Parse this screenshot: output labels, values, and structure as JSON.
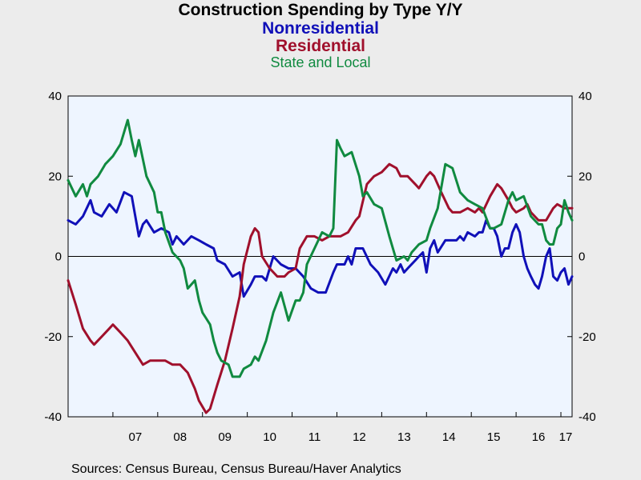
{
  "chart_data": {
    "type": "line",
    "title": "Construction Spending by Type Y/Y",
    "xlabel": "",
    "ylabel": "",
    "ylim": [
      -40,
      40
    ],
    "yticks": [
      -40,
      -20,
      0,
      20,
      40
    ],
    "xlim": [
      2006.0,
      2017.25
    ],
    "x_tick_labels": [
      "07",
      "08",
      "09",
      "10",
      "11",
      "12",
      "13",
      "14",
      "15",
      "16",
      "17"
    ],
    "grid": false,
    "legend": "top (title lines)",
    "series": [
      {
        "name": "Nonresidential",
        "color": "#1010b8",
        "points": [
          [
            2006.0,
            9
          ],
          [
            2006.17,
            8
          ],
          [
            2006.33,
            10
          ],
          [
            2006.5,
            14
          ],
          [
            2006.58,
            11
          ],
          [
            2006.75,
            10
          ],
          [
            2006.92,
            13
          ],
          [
            2007.08,
            11
          ],
          [
            2007.25,
            16
          ],
          [
            2007.42,
            15
          ],
          [
            2007.58,
            5
          ],
          [
            2007.67,
            8
          ],
          [
            2007.75,
            9
          ],
          [
            2007.92,
            6
          ],
          [
            2008.08,
            7
          ],
          [
            2008.25,
            6
          ],
          [
            2008.33,
            3
          ],
          [
            2008.42,
            5
          ],
          [
            2008.58,
            3
          ],
          [
            2008.75,
            5
          ],
          [
            2008.92,
            4
          ],
          [
            2009.08,
            3
          ],
          [
            2009.25,
            2
          ],
          [
            2009.33,
            -1
          ],
          [
            2009.5,
            -2
          ],
          [
            2009.67,
            -5
          ],
          [
            2009.83,
            -4
          ],
          [
            2009.92,
            -10
          ],
          [
            2010.08,
            -7
          ],
          [
            2010.17,
            -5
          ],
          [
            2010.33,
            -5
          ],
          [
            2010.42,
            -6
          ],
          [
            2010.58,
            0
          ],
          [
            2010.75,
            -2
          ],
          [
            2010.92,
            -3
          ],
          [
            2011.08,
            -3
          ],
          [
            2011.25,
            -5
          ],
          [
            2011.42,
            -8
          ],
          [
            2011.58,
            -9
          ],
          [
            2011.75,
            -9
          ],
          [
            2011.92,
            -4
          ],
          [
            2012.0,
            -2
          ],
          [
            2012.17,
            -2
          ],
          [
            2012.25,
            0
          ],
          [
            2012.33,
            -2
          ],
          [
            2012.42,
            2
          ],
          [
            2012.58,
            2
          ],
          [
            2012.75,
            -2
          ],
          [
            2012.92,
            -4
          ],
          [
            2013.08,
            -7
          ],
          [
            2013.25,
            -3
          ],
          [
            2013.33,
            -4
          ],
          [
            2013.42,
            -2
          ],
          [
            2013.5,
            -4
          ],
          [
            2013.58,
            -3
          ],
          [
            2013.75,
            -1
          ],
          [
            2013.83,
            0
          ],
          [
            2013.92,
            1
          ],
          [
            2014.0,
            -4
          ],
          [
            2014.08,
            2
          ],
          [
            2014.17,
            4
          ],
          [
            2014.25,
            1
          ],
          [
            2014.42,
            4
          ],
          [
            2014.5,
            4
          ],
          [
            2014.67,
            4
          ],
          [
            2014.75,
            5
          ],
          [
            2014.83,
            4
          ],
          [
            2014.92,
            6
          ],
          [
            2015.08,
            5
          ],
          [
            2015.17,
            6
          ],
          [
            2015.25,
            6
          ],
          [
            2015.33,
            9
          ],
          [
            2015.42,
            7
          ],
          [
            2015.5,
            7
          ],
          [
            2015.58,
            5
          ],
          [
            2015.67,
            0
          ],
          [
            2015.75,
            2
          ],
          [
            2015.83,
            2
          ],
          [
            2015.92,
            6
          ],
          [
            2016.0,
            8
          ],
          [
            2016.08,
            6
          ],
          [
            2016.17,
            0
          ],
          [
            2016.25,
            -3
          ],
          [
            2016.33,
            -5
          ],
          [
            2016.42,
            -7
          ],
          [
            2016.5,
            -8
          ],
          [
            2016.58,
            -5
          ],
          [
            2016.67,
            0
          ],
          [
            2016.75,
            2
          ],
          [
            2016.83,
            -5
          ],
          [
            2016.92,
            -6
          ],
          [
            2017.0,
            -4
          ],
          [
            2017.08,
            -3
          ],
          [
            2017.17,
            -7
          ],
          [
            2017.25,
            -5
          ]
        ]
      },
      {
        "name": "Residential",
        "color": "#a0102c",
        "points": [
          [
            2006.0,
            -6
          ],
          [
            2006.17,
            -12
          ],
          [
            2006.33,
            -18
          ],
          [
            2006.5,
            -21
          ],
          [
            2006.58,
            -22
          ],
          [
            2006.75,
            -20
          ],
          [
            2006.92,
            -18
          ],
          [
            2007.0,
            -17
          ],
          [
            2007.17,
            -19
          ],
          [
            2007.33,
            -21
          ],
          [
            2007.5,
            -24
          ],
          [
            2007.67,
            -27
          ],
          [
            2007.83,
            -26
          ],
          [
            2008.0,
            -26
          ],
          [
            2008.17,
            -26
          ],
          [
            2008.33,
            -27
          ],
          [
            2008.5,
            -27
          ],
          [
            2008.67,
            -29
          ],
          [
            2008.83,
            -33
          ],
          [
            2008.92,
            -36
          ],
          [
            2009.08,
            -39
          ],
          [
            2009.17,
            -38
          ],
          [
            2009.33,
            -32
          ],
          [
            2009.5,
            -26
          ],
          [
            2009.67,
            -18
          ],
          [
            2009.83,
            -10
          ],
          [
            2009.92,
            -2
          ],
          [
            2010.08,
            5
          ],
          [
            2010.17,
            7
          ],
          [
            2010.25,
            6
          ],
          [
            2010.33,
            0
          ],
          [
            2010.5,
            -3
          ],
          [
            2010.67,
            -5
          ],
          [
            2010.83,
            -5
          ],
          [
            2010.92,
            -4
          ],
          [
            2011.08,
            -3
          ],
          [
            2011.17,
            2
          ],
          [
            2011.33,
            5
          ],
          [
            2011.5,
            5
          ],
          [
            2011.67,
            4
          ],
          [
            2011.83,
            5
          ],
          [
            2011.92,
            5
          ],
          [
            2012.08,
            5
          ],
          [
            2012.25,
            6
          ],
          [
            2012.42,
            9
          ],
          [
            2012.5,
            10
          ],
          [
            2012.67,
            18
          ],
          [
            2012.83,
            20
          ],
          [
            2013.0,
            21
          ],
          [
            2013.17,
            23
          ],
          [
            2013.33,
            22
          ],
          [
            2013.42,
            20
          ],
          [
            2013.58,
            20
          ],
          [
            2013.75,
            18
          ],
          [
            2013.83,
            17
          ],
          [
            2014.0,
            20
          ],
          [
            2014.08,
            21
          ],
          [
            2014.17,
            20
          ],
          [
            2014.33,
            16
          ],
          [
            2014.5,
            12
          ],
          [
            2014.58,
            11
          ],
          [
            2014.75,
            11
          ],
          [
            2014.92,
            12
          ],
          [
            2015.08,
            11
          ],
          [
            2015.17,
            12
          ],
          [
            2015.25,
            11
          ],
          [
            2015.42,
            15
          ],
          [
            2015.58,
            18
          ],
          [
            2015.67,
            17
          ],
          [
            2015.83,
            14
          ],
          [
            2015.92,
            12
          ],
          [
            2016.0,
            11
          ],
          [
            2016.17,
            12
          ],
          [
            2016.25,
            13
          ],
          [
            2016.33,
            11
          ],
          [
            2016.5,
            9
          ],
          [
            2016.67,
            9
          ],
          [
            2016.83,
            12
          ],
          [
            2016.92,
            13
          ],
          [
            2017.08,
            12
          ],
          [
            2017.17,
            12
          ],
          [
            2017.25,
            12
          ]
        ]
      },
      {
        "name": "State and Local",
        "color": "#108a40",
        "points": [
          [
            2006.0,
            19
          ],
          [
            2006.17,
            15
          ],
          [
            2006.33,
            18
          ],
          [
            2006.42,
            15
          ],
          [
            2006.5,
            18
          ],
          [
            2006.67,
            20
          ],
          [
            2006.83,
            23
          ],
          [
            2007.0,
            25
          ],
          [
            2007.17,
            28
          ],
          [
            2007.33,
            34
          ],
          [
            2007.42,
            29
          ],
          [
            2007.5,
            25
          ],
          [
            2007.58,
            29
          ],
          [
            2007.75,
            20
          ],
          [
            2007.92,
            16
          ],
          [
            2008.0,
            11
          ],
          [
            2008.08,
            11
          ],
          [
            2008.17,
            6
          ],
          [
            2008.33,
            1
          ],
          [
            2008.5,
            -1
          ],
          [
            2008.58,
            -3
          ],
          [
            2008.67,
            -8
          ],
          [
            2008.83,
            -6
          ],
          [
            2008.92,
            -11
          ],
          [
            2009.0,
            -14
          ],
          [
            2009.17,
            -17
          ],
          [
            2009.25,
            -21
          ],
          [
            2009.33,
            -24
          ],
          [
            2009.42,
            -26
          ],
          [
            2009.58,
            -27
          ],
          [
            2009.67,
            -30
          ],
          [
            2009.83,
            -30
          ],
          [
            2009.92,
            -28
          ],
          [
            2010.08,
            -27
          ],
          [
            2010.17,
            -25
          ],
          [
            2010.25,
            -26
          ],
          [
            2010.42,
            -21
          ],
          [
            2010.58,
            -14
          ],
          [
            2010.75,
            -9
          ],
          [
            2010.92,
            -16
          ],
          [
            2011.08,
            -11
          ],
          [
            2011.17,
            -11
          ],
          [
            2011.25,
            -9
          ],
          [
            2011.33,
            -2
          ],
          [
            2011.5,
            2
          ],
          [
            2011.67,
            6
          ],
          [
            2011.83,
            5
          ],
          [
            2011.92,
            7
          ],
          [
            2012.0,
            29
          ],
          [
            2012.08,
            27
          ],
          [
            2012.17,
            25
          ],
          [
            2012.33,
            26
          ],
          [
            2012.5,
            20
          ],
          [
            2012.58,
            15
          ],
          [
            2012.67,
            16
          ],
          [
            2012.83,
            13
          ],
          [
            2013.0,
            12
          ],
          [
            2013.17,
            5
          ],
          [
            2013.33,
            -1
          ],
          [
            2013.5,
            0
          ],
          [
            2013.58,
            -1
          ],
          [
            2013.67,
            1
          ],
          [
            2013.83,
            3
          ],
          [
            2014.0,
            4
          ],
          [
            2014.08,
            7
          ],
          [
            2014.25,
            12
          ],
          [
            2014.42,
            23
          ],
          [
            2014.58,
            22
          ],
          [
            2014.75,
            16
          ],
          [
            2014.92,
            14
          ],
          [
            2015.08,
            13
          ],
          [
            2015.25,
            12
          ],
          [
            2015.42,
            7
          ],
          [
            2015.5,
            7
          ],
          [
            2015.67,
            8
          ],
          [
            2015.83,
            14
          ],
          [
            2015.92,
            16
          ],
          [
            2016.0,
            14
          ],
          [
            2016.17,
            15
          ],
          [
            2016.33,
            10
          ],
          [
            2016.5,
            8
          ],
          [
            2016.58,
            8
          ],
          [
            2016.67,
            4
          ],
          [
            2016.75,
            3
          ],
          [
            2016.83,
            3
          ],
          [
            2016.92,
            7
          ],
          [
            2017.0,
            8
          ],
          [
            2017.08,
            14
          ],
          [
            2017.17,
            11
          ],
          [
            2017.25,
            9
          ]
        ]
      }
    ]
  },
  "source_text": "Sources:  Census Bureau, Census Bureau/Haver Analytics"
}
